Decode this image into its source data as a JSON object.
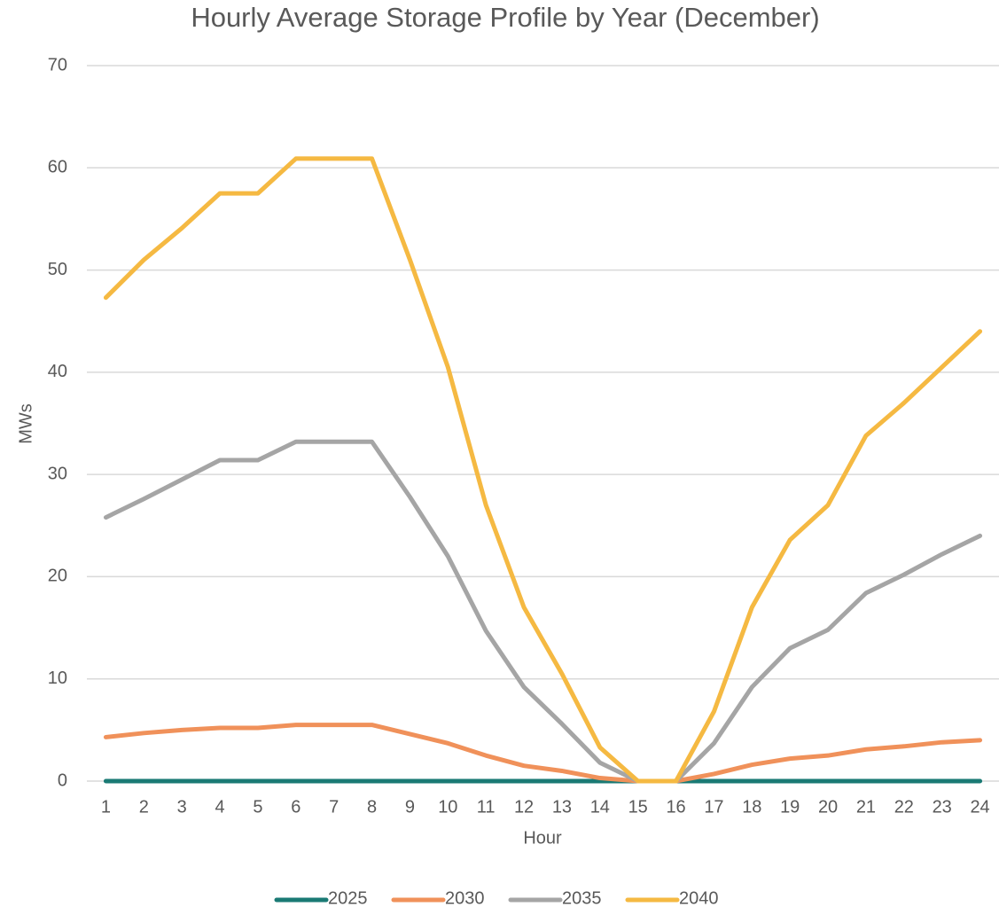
{
  "chart_data": {
    "type": "line",
    "title": "Hourly Average Storage Profile by Year (December)",
    "x_label": "Hour",
    "y_label": "MWs",
    "categories": [
      "1",
      "2",
      "3",
      "4",
      "5",
      "6",
      "7",
      "8",
      "9",
      "10",
      "11",
      "12",
      "13",
      "14",
      "15",
      "16",
      "17",
      "18",
      "19",
      "20",
      "21",
      "22",
      "23",
      "24"
    ],
    "series": [
      {
        "name": "2025",
        "color": "#1a7a74",
        "values": [
          0,
          0,
          0,
          0,
          0,
          0,
          0,
          0,
          0,
          0,
          0,
          0,
          0,
          0,
          0,
          0,
          0,
          0,
          0,
          0,
          0,
          0,
          0,
          0
        ]
      },
      {
        "name": "2030",
        "color": "#f0915a",
        "values": [
          4.3,
          4.7,
          5.0,
          5.2,
          5.2,
          5.5,
          5.5,
          5.5,
          4.6,
          3.7,
          2.5,
          1.5,
          1.0,
          0.3,
          0,
          0,
          0.7,
          1.6,
          2.2,
          2.5,
          3.1,
          3.4,
          3.8,
          4.0
        ]
      },
      {
        "name": "2035",
        "color": "#a5a5a5",
        "values": [
          25.8,
          27.6,
          29.5,
          31.4,
          31.4,
          33.2,
          33.2,
          33.2,
          27.8,
          22,
          14.7,
          9.2,
          5.6,
          1.8,
          0,
          0,
          3.7,
          9.2,
          13,
          14.8,
          18.4,
          20.2,
          22.2,
          24
        ]
      },
      {
        "name": "2040",
        "color": "#f5b942",
        "values": [
          47.3,
          51,
          54.1,
          57.5,
          57.5,
          60.9,
          60.9,
          60.9,
          51,
          40.5,
          27,
          17,
          10.5,
          3.3,
          0,
          0,
          6.8,
          17,
          23.6,
          27,
          33.8,
          37,
          40.5,
          44
        ]
      }
    ],
    "ylim": [
      0,
      70
    ],
    "yticks": [
      0,
      10,
      20,
      30,
      40,
      50,
      60,
      70
    ],
    "grid": true,
    "legend": "bottom"
  }
}
